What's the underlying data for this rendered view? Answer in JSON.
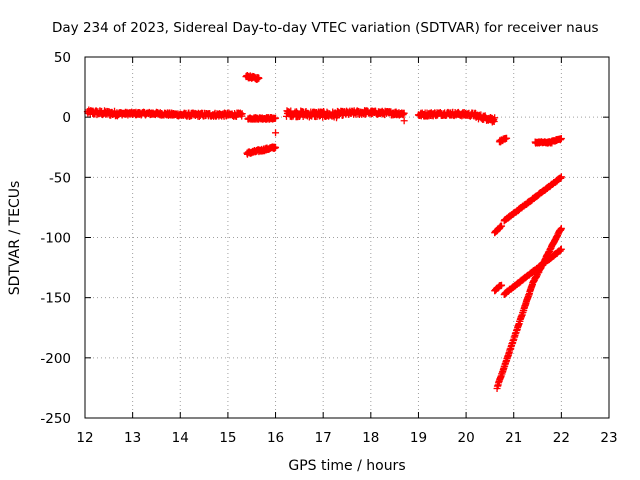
{
  "chart_data": {
    "type": "scatter",
    "title": "Day 234 of 2023, Sidereal Day-to-day VTEC variation (SDTVAR) for receiver naus",
    "xlabel": "GPS time / hours",
    "ylabel": "SDTVAR / TECUs",
    "xlim": [
      12,
      23
    ],
    "ylim": [
      -250,
      50
    ],
    "xticks": [
      12,
      13,
      14,
      15,
      16,
      17,
      18,
      19,
      20,
      21,
      22,
      23
    ],
    "yticks": [
      -250,
      -200,
      -150,
      -100,
      -50,
      0,
      50
    ],
    "xtick_labels": [
      "12",
      "13",
      "14",
      "15",
      "16",
      "17",
      "18",
      "19",
      "20",
      "21",
      "22",
      "23"
    ],
    "ytick_labels": [
      "-250",
      "-200",
      "-150",
      "-100",
      "-50",
      "0",
      "50"
    ],
    "grid": true,
    "marker": "+",
    "color": "#ff0000",
    "segments": [
      {
        "x0": 12.05,
        "y0": 4,
        "x1": 12.7,
        "y1": 3,
        "step": 0.01,
        "noise": 2
      },
      {
        "x0": 12.7,
        "y0": 3,
        "x1": 13.5,
        "y1": 3,
        "step": 0.01,
        "noise": 1.2
      },
      {
        "x0": 13.5,
        "y0": 3,
        "x1": 14.0,
        "y1": 2,
        "step": 0.01,
        "noise": 1.2
      },
      {
        "x0": 14.0,
        "y0": 2,
        "x1": 15.3,
        "y1": 2,
        "step": 0.01,
        "noise": 1.5
      },
      {
        "x0": 15.38,
        "y0": 34,
        "x1": 15.65,
        "y1": 32,
        "step": 0.01,
        "noise": 1
      },
      {
        "x0": 15.42,
        "y0": -1,
        "x1": 16.0,
        "y1": -1,
        "step": 0.01,
        "noise": 0.8
      },
      {
        "x0": 15.4,
        "y0": -30,
        "x1": 16.0,
        "y1": -25,
        "step": 0.01,
        "noise": 1
      },
      {
        "x0": 16.23,
        "y0": 3,
        "x1": 17.3,
        "y1": 2,
        "step": 0.01,
        "noise": 2.5
      },
      {
        "x0": 17.3,
        "y0": 3,
        "x1": 17.9,
        "y1": 4,
        "step": 0.01,
        "noise": 1.8
      },
      {
        "x0": 17.9,
        "y0": 4,
        "x1": 18.7,
        "y1": 3,
        "step": 0.01,
        "noise": 1.5
      },
      {
        "x0": 19.0,
        "y0": 2,
        "x1": 19.6,
        "y1": 3,
        "step": 0.01,
        "noise": 1.5
      },
      {
        "x0": 19.6,
        "y0": 3,
        "x1": 20.2,
        "y1": 2,
        "step": 0.01,
        "noise": 1.5
      },
      {
        "x0": 20.2,
        "y0": 1,
        "x1": 20.6,
        "y1": -2,
        "step": 0.01,
        "noise": 2
      },
      {
        "x0": 20.7,
        "y0": -20,
        "x1": 20.85,
        "y1": -18,
        "step": 0.01,
        "noise": 0.8
      },
      {
        "x0": 21.45,
        "y0": -21,
        "x1": 21.8,
        "y1": -21,
        "step": 0.01,
        "noise": 0.6
      },
      {
        "x0": 21.8,
        "y0": -20,
        "x1": 22.0,
        "y1": -18,
        "step": 0.01,
        "noise": 0.6
      },
      {
        "x0": 20.6,
        "y0": -96,
        "x1": 20.75,
        "y1": -90,
        "step": 0.008,
        "noise": 0.5
      },
      {
        "x0": 20.8,
        "y0": -86,
        "x1": 22.0,
        "y1": -50,
        "step": 0.008,
        "noise": 0.5
      },
      {
        "x0": 20.6,
        "y0": -144,
        "x1": 20.75,
        "y1": -139,
        "step": 0.008,
        "noise": 0.5
      },
      {
        "x0": 20.8,
        "y0": -147,
        "x1": 22.0,
        "y1": -110,
        "step": 0.008,
        "noise": 0.5
      },
      {
        "x0": 20.65,
        "y0": -225,
        "x1": 21.4,
        "y1": -138,
        "step": 0.008,
        "noise": 0.6
      },
      {
        "x0": 21.4,
        "y0": -138,
        "x1": 22.0,
        "y1": -92,
        "step": 0.008,
        "noise": 0.6
      }
    ],
    "points": [
      {
        "x": 16.0,
        "y": -13
      },
      {
        "x": 18.7,
        "y": -3
      },
      {
        "x": 20.55,
        "y": -4
      },
      {
        "x": 20.55,
        "y": -1
      }
    ]
  }
}
